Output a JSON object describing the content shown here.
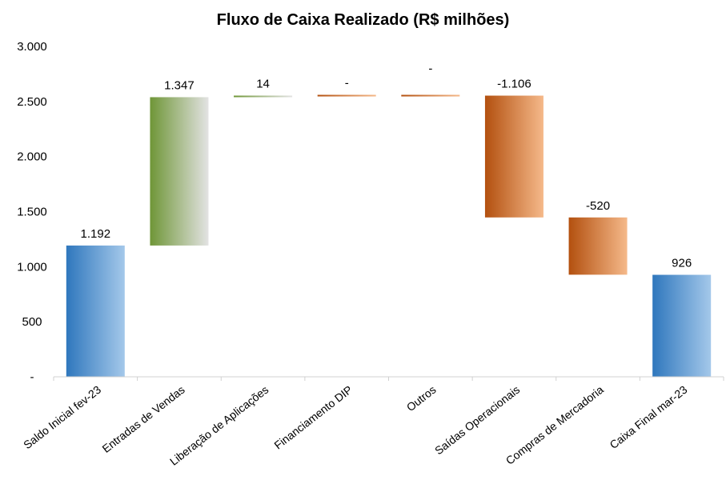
{
  "chart_data": {
    "type": "bar",
    "subtype": "waterfall",
    "title": "Fluxo de Caixa Realizado (R$ milhões)",
    "xlabel": "",
    "ylabel": "",
    "ylim": [
      0,
      3000
    ],
    "yticks": [
      0,
      500,
      1000,
      1500,
      2000,
      2500,
      3000
    ],
    "ytick_labels": [
      "-",
      "500",
      "1.000",
      "1.500",
      "2.000",
      "2.500",
      "3.000"
    ],
    "categories": [
      "Saldo Inicial fev-23",
      "Entradas de Vendas",
      "Liberação de Aplicações",
      "Financiamento DIP",
      "Outros",
      "Saídas Operacionais",
      "Compras de Mercadoria",
      "Caixa Final mar-23"
    ],
    "values": [
      1192,
      1347,
      14,
      0,
      0,
      -1106,
      -520,
      926
    ],
    "bar_kind": [
      "total",
      "increase",
      "increase",
      "decrease",
      "decrease",
      "decrease",
      "decrease",
      "total"
    ],
    "data_labels": [
      "1.192",
      "1.347",
      "14",
      "-",
      "-",
      "-1.106",
      "-520",
      "926"
    ],
    "grid": false,
    "legend": "none",
    "colors": {
      "total_dark": "#2f77bd",
      "total_light": "#a4c8ea",
      "increase_dark": "#6f9637",
      "increase_light": "#e3e3e3",
      "decrease_dark": "#b3500f",
      "decrease_light": "#f5b98a",
      "axis": "#d0d0d0"
    }
  }
}
